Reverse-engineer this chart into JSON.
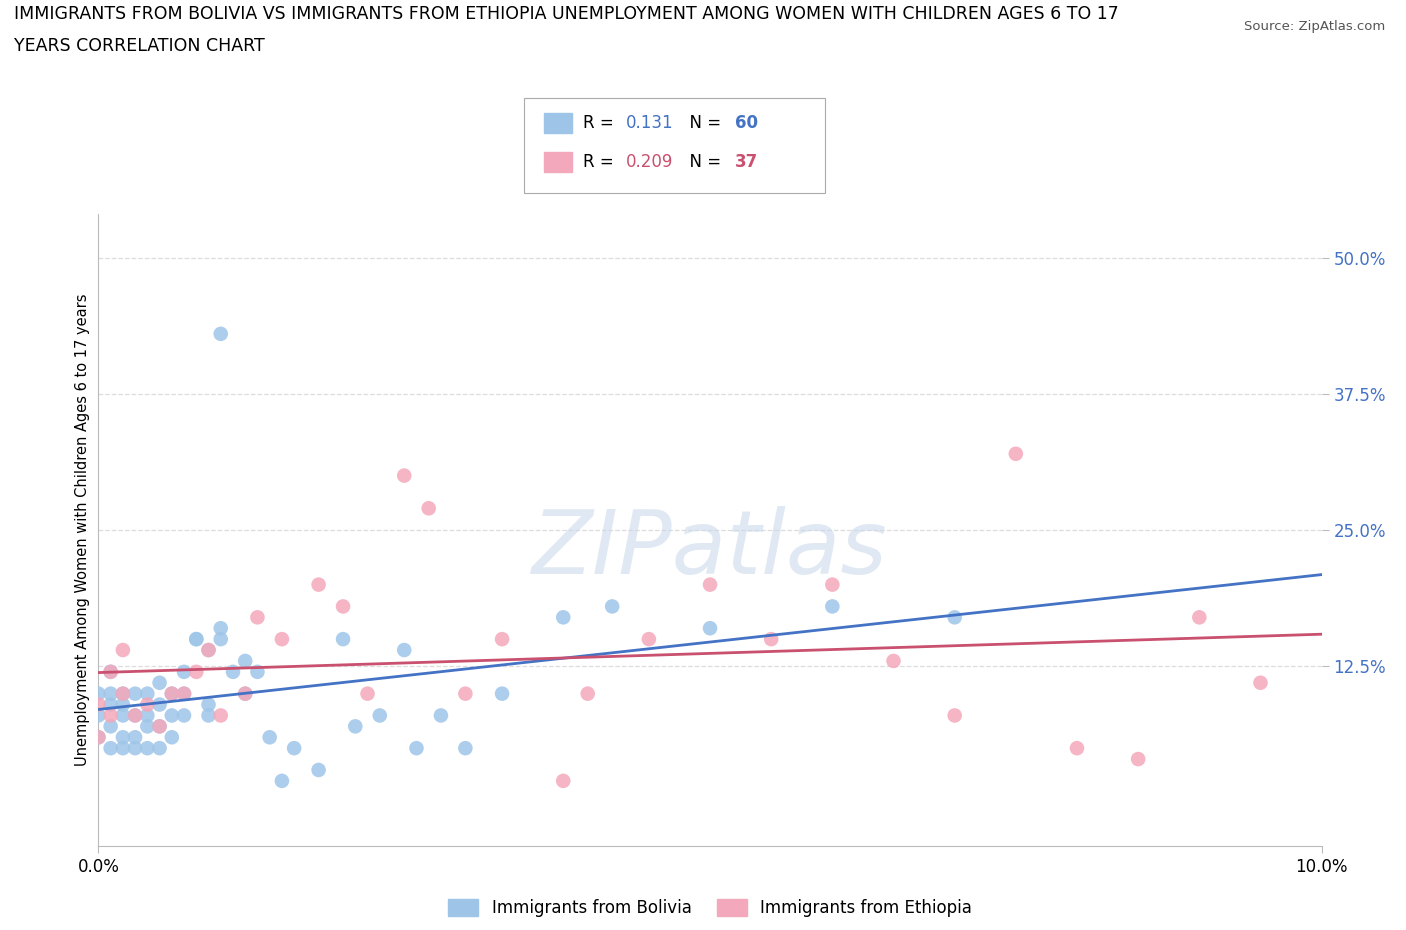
{
  "title_line1": "IMMIGRANTS FROM BOLIVIA VS IMMIGRANTS FROM ETHIOPIA UNEMPLOYMENT AMONG WOMEN WITH CHILDREN AGES 6 TO 17",
  "title_line2": "YEARS CORRELATION CHART",
  "source": "Source: ZipAtlas.com",
  "ylabel": "Unemployment Among Women with Children Ages 6 to 17 years",
  "xlim": [
    0.0,
    0.1
  ],
  "ylim": [
    -0.04,
    0.54
  ],
  "ytick_vals": [
    0.125,
    0.25,
    0.375,
    0.5
  ],
  "ytick_labels": [
    "12.5%",
    "25.0%",
    "37.5%",
    "50.0%"
  ],
  "ytick_color": "#4472c4",
  "xtick_vals": [
    0.0,
    0.1
  ],
  "xtick_labels": [
    "0.0%",
    "10.0%"
  ],
  "bolivia_color": "#9ec5e8",
  "ethiopia_color": "#f4a8bb",
  "bolivia_line_color": "#4472c4",
  "ethiopia_line_color": "#c9506e",
  "R_bolivia": 0.131,
  "N_bolivia": 60,
  "R_ethiopia": 0.209,
  "N_ethiopia": 37,
  "bolivia_x": [
    0.0,
    0.0,
    0.0,
    0.001,
    0.001,
    0.001,
    0.001,
    0.001,
    0.002,
    0.002,
    0.002,
    0.002,
    0.002,
    0.003,
    0.003,
    0.003,
    0.003,
    0.004,
    0.004,
    0.004,
    0.004,
    0.005,
    0.005,
    0.005,
    0.005,
    0.006,
    0.006,
    0.006,
    0.007,
    0.007,
    0.007,
    0.008,
    0.008,
    0.009,
    0.009,
    0.009,
    0.01,
    0.01,
    0.01,
    0.011,
    0.012,
    0.012,
    0.013,
    0.014,
    0.015,
    0.016,
    0.018,
    0.02,
    0.021,
    0.023,
    0.025,
    0.026,
    0.028,
    0.03,
    0.033,
    0.038,
    0.042,
    0.05,
    0.06,
    0.07
  ],
  "bolivia_y": [
    0.08,
    0.1,
    0.06,
    0.12,
    0.09,
    0.07,
    0.05,
    0.1,
    0.1,
    0.08,
    0.06,
    0.05,
    0.09,
    0.08,
    0.06,
    0.1,
    0.05,
    0.08,
    0.1,
    0.07,
    0.05,
    0.09,
    0.07,
    0.11,
    0.05,
    0.1,
    0.08,
    0.06,
    0.12,
    0.1,
    0.08,
    0.15,
    0.15,
    0.14,
    0.09,
    0.08,
    0.16,
    0.15,
    0.43,
    0.12,
    0.13,
    0.1,
    0.12,
    0.06,
    0.02,
    0.05,
    0.03,
    0.15,
    0.07,
    0.08,
    0.14,
    0.05,
    0.08,
    0.05,
    0.1,
    0.17,
    0.18,
    0.16,
    0.18,
    0.17
  ],
  "ethiopia_x": [
    0.0,
    0.0,
    0.001,
    0.001,
    0.002,
    0.002,
    0.003,
    0.004,
    0.005,
    0.006,
    0.007,
    0.008,
    0.009,
    0.01,
    0.012,
    0.013,
    0.015,
    0.018,
    0.02,
    0.022,
    0.025,
    0.027,
    0.03,
    0.033,
    0.038,
    0.04,
    0.045,
    0.05,
    0.055,
    0.06,
    0.065,
    0.07,
    0.075,
    0.08,
    0.085,
    0.09,
    0.095
  ],
  "ethiopia_y": [
    0.06,
    0.09,
    0.08,
    0.12,
    0.1,
    0.14,
    0.08,
    0.09,
    0.07,
    0.1,
    0.1,
    0.12,
    0.14,
    0.08,
    0.1,
    0.17,
    0.15,
    0.2,
    0.18,
    0.1,
    0.3,
    0.27,
    0.1,
    0.15,
    0.02,
    0.1,
    0.15,
    0.2,
    0.15,
    0.2,
    0.13,
    0.08,
    0.32,
    0.05,
    0.04,
    0.17,
    0.11
  ],
  "watermark_text": "ZIPatlas",
  "watermark_color": "#c8d8ea",
  "background_color": "#ffffff",
  "grid_color": "#dddddd",
  "grid_linestyle": "--"
}
